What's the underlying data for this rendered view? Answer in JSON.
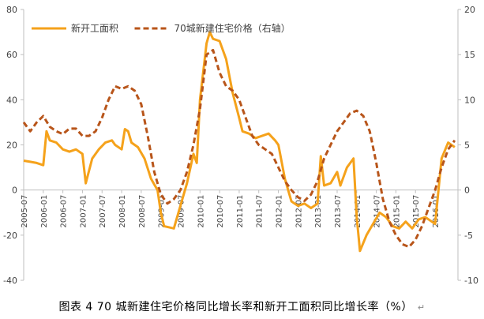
{
  "caption": "图表 4 70 城新建住宅价格同比增长率和新开工面积同比增长率（%）",
  "caption_mark": "↵",
  "chart_data": {
    "type": "line",
    "title": "",
    "legend_position": "top-left",
    "grid": false,
    "x_ticks": [
      "2005-07",
      "2006-01",
      "2006-07",
      "2007-01",
      "2007-07",
      "2008-01",
      "2008-07",
      "2009-01",
      "2009-07",
      "2010-01",
      "2010-07",
      "2011-01",
      "2011-07",
      "2012-01",
      "2012-07",
      "2013-01",
      "2013-07",
      "2014-01",
      "2014-07",
      "2015-01",
      "2015-07",
      "2016-01"
    ],
    "x_range": [
      "2005-07",
      "2016-08"
    ],
    "y_left": {
      "range": [
        -40,
        80
      ],
      "ticks": [
        -40,
        -20,
        0,
        20,
        40,
        60,
        80
      ]
    },
    "y_right": {
      "range": [
        -10,
        20
      ],
      "ticks": [
        -10,
        -5,
        0,
        5,
        10,
        15,
        20
      ]
    },
    "series": [
      {
        "name": "新开工面积",
        "axis": "left",
        "style": "solid",
        "color": "#f5a21b",
        "points": [
          [
            "2005-07",
            13
          ],
          [
            "2005-09",
            12.5
          ],
          [
            "2005-11",
            12
          ],
          [
            "2006-01",
            11
          ],
          [
            "2006-02",
            26
          ],
          [
            "2006-03",
            22
          ],
          [
            "2006-05",
            21
          ],
          [
            "2006-07",
            18
          ],
          [
            "2006-09",
            17
          ],
          [
            "2006-11",
            18
          ],
          [
            "2007-01",
            16
          ],
          [
            "2007-02",
            3
          ],
          [
            "2007-04",
            14
          ],
          [
            "2007-06",
            18
          ],
          [
            "2007-08",
            21
          ],
          [
            "2007-10",
            22
          ],
          [
            "2007-11",
            20
          ],
          [
            "2008-01",
            18
          ],
          [
            "2008-02",
            27
          ],
          [
            "2008-03",
            26
          ],
          [
            "2008-04",
            21
          ],
          [
            "2008-06",
            19
          ],
          [
            "2008-08",
            14
          ],
          [
            "2008-10",
            5
          ],
          [
            "2008-12",
            0
          ],
          [
            "2009-01",
            -10
          ],
          [
            "2009-02",
            -16
          ],
          [
            "2009-05",
            -17
          ],
          [
            "2009-07",
            -7
          ],
          [
            "2009-09",
            3
          ],
          [
            "2009-11",
            16
          ],
          [
            "2009-12",
            12
          ],
          [
            "2010-01",
            40
          ],
          [
            "2010-03",
            65
          ],
          [
            "2010-04",
            70
          ],
          [
            "2010-05",
            67
          ],
          [
            "2010-07",
            66
          ],
          [
            "2010-09",
            58
          ],
          [
            "2010-11",
            43
          ],
          [
            "2011-01",
            32
          ],
          [
            "2011-02",
            26
          ],
          [
            "2011-04",
            25
          ],
          [
            "2011-06",
            23
          ],
          [
            "2011-08",
            24
          ],
          [
            "2011-10",
            25
          ],
          [
            "2011-12",
            22
          ],
          [
            "2012-01",
            20
          ],
          [
            "2012-03",
            5
          ],
          [
            "2012-05",
            -5
          ],
          [
            "2012-07",
            -7
          ],
          [
            "2012-09",
            -6
          ],
          [
            "2012-11",
            -8
          ],
          [
            "2013-01",
            -6
          ],
          [
            "2013-02",
            15
          ],
          [
            "2013-03",
            2
          ],
          [
            "2013-05",
            3
          ],
          [
            "2013-07",
            8
          ],
          [
            "2013-08",
            2
          ],
          [
            "2013-10",
            10
          ],
          [
            "2013-12",
            14
          ],
          [
            "2014-01",
            -12
          ],
          [
            "2014-02",
            -27
          ],
          [
            "2014-04",
            -20
          ],
          [
            "2014-06",
            -15
          ],
          [
            "2014-08",
            -10
          ],
          [
            "2014-10",
            -12
          ],
          [
            "2014-12",
            -16
          ],
          [
            "2015-02",
            -17
          ],
          [
            "2015-04",
            -14
          ],
          [
            "2015-06",
            -17
          ],
          [
            "2015-08",
            -13
          ],
          [
            "2015-10",
            -12
          ],
          [
            "2015-12",
            -14
          ],
          [
            "2016-01",
            -15
          ],
          [
            "2016-03",
            14
          ],
          [
            "2016-05",
            21
          ],
          [
            "2016-07",
            19
          ]
        ]
      },
      {
        "name": "70城新建住宅价格（右轴）",
        "axis": "right",
        "style": "dashed",
        "color": "#b8551a",
        "points": [
          [
            "2005-07",
            7.5
          ],
          [
            "2005-09",
            6.5
          ],
          [
            "2005-11",
            7.5
          ],
          [
            "2006-01",
            8.2
          ],
          [
            "2006-03",
            7
          ],
          [
            "2006-05",
            6.5
          ],
          [
            "2006-07",
            6.2
          ],
          [
            "2006-09",
            6.8
          ],
          [
            "2006-11",
            6.8
          ],
          [
            "2007-01",
            6
          ],
          [
            "2007-03",
            6
          ],
          [
            "2007-05",
            6.5
          ],
          [
            "2007-07",
            8
          ],
          [
            "2007-09",
            10
          ],
          [
            "2007-11",
            11.5
          ],
          [
            "2008-01",
            11.2
          ],
          [
            "2008-03",
            11.5
          ],
          [
            "2008-05",
            11
          ],
          [
            "2008-07",
            9.5
          ],
          [
            "2008-09",
            6
          ],
          [
            "2008-11",
            2
          ],
          [
            "2009-01",
            -0.5
          ],
          [
            "2009-03",
            -1.5
          ],
          [
            "2009-05",
            -1
          ],
          [
            "2009-07",
            0
          ],
          [
            "2009-09",
            2
          ],
          [
            "2009-11",
            5
          ],
          [
            "2010-01",
            9
          ],
          [
            "2010-03",
            15
          ],
          [
            "2010-05",
            15.5
          ],
          [
            "2010-07",
            13
          ],
          [
            "2010-09",
            11.5
          ],
          [
            "2010-11",
            11
          ],
          [
            "2011-01",
            10
          ],
          [
            "2011-03",
            8
          ],
          [
            "2011-05",
            6
          ],
          [
            "2011-07",
            5
          ],
          [
            "2011-09",
            4.5
          ],
          [
            "2011-11",
            4
          ],
          [
            "2012-01",
            2.5
          ],
          [
            "2012-03",
            1
          ],
          [
            "2012-05",
            0
          ],
          [
            "2012-07",
            -0.8
          ],
          [
            "2012-09",
            -1.2
          ],
          [
            "2012-11",
            -0.5
          ],
          [
            "2013-01",
            1
          ],
          [
            "2013-03",
            3.5
          ],
          [
            "2013-05",
            5
          ],
          [
            "2013-07",
            6.5
          ],
          [
            "2013-09",
            7.5
          ],
          [
            "2013-11",
            8.5
          ],
          [
            "2014-01",
            8.8
          ],
          [
            "2014-03",
            8.2
          ],
          [
            "2014-05",
            6.5
          ],
          [
            "2014-07",
            3
          ],
          [
            "2014-09",
            -1
          ],
          [
            "2014-11",
            -3.5
          ],
          [
            "2015-01",
            -5
          ],
          [
            "2015-03",
            -6
          ],
          [
            "2015-05",
            -6.3
          ],
          [
            "2015-07",
            -5.5
          ],
          [
            "2015-09",
            -4
          ],
          [
            "2015-11",
            -2
          ],
          [
            "2016-01",
            0
          ],
          [
            "2016-03",
            2.5
          ],
          [
            "2016-05",
            4.5
          ],
          [
            "2016-07",
            5.5
          ]
        ]
      }
    ]
  }
}
